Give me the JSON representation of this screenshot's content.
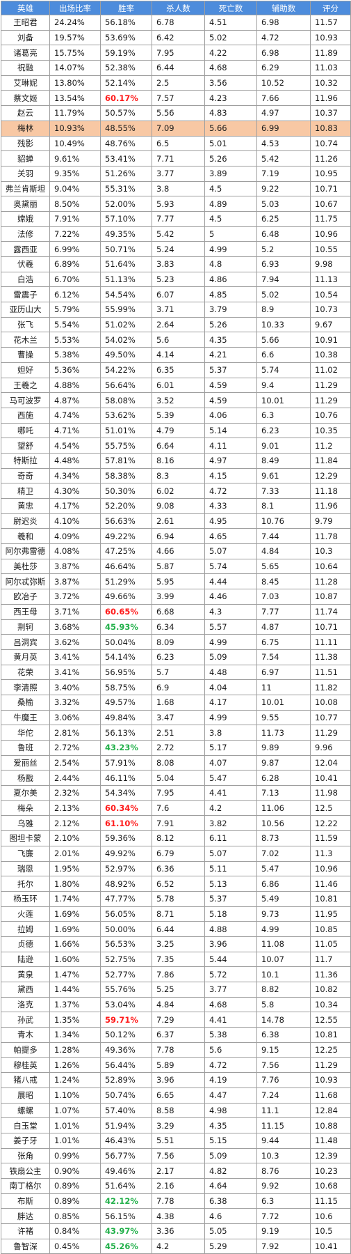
{
  "header": [
    "英雄",
    "出场比率",
    "胜率",
    "杀人数",
    "死亡数",
    "辅助数",
    "评分"
  ],
  "highlight_color": "#f8c8a4",
  "header_color": "#4d8cdc",
  "high_win_color": "#ff1a1a",
  "low_win_color": "#22b04a",
  "rows": [
    [
      "王昭君",
      "24.24%",
      "56.18%",
      "6.78",
      "4.51",
      "6.98",
      "11.57"
    ],
    [
      "刘备",
      "19.57%",
      "53.69%",
      "6.42",
      "5.02",
      "4.72",
      "10.93"
    ],
    [
      "诸葛亮",
      "15.75%",
      "59.19%",
      "7.95",
      "4.22",
      "6.98",
      "11.89"
    ],
    [
      "祝融",
      "14.07%",
      "52.38%",
      "6.44",
      "4.68",
      "6.29",
      "11.03"
    ],
    [
      "艾琳妮",
      "13.80%",
      "52.14%",
      "2.5",
      "3.56",
      "10.52",
      "10.32"
    ],
    [
      "蔡文姬",
      "13.54%",
      "60.17%",
      "7.57",
      "4.23",
      "7.66",
      "11.96",
      "high"
    ],
    [
      "赵云",
      "11.79%",
      "50.57%",
      "5.56",
      "4.83",
      "4.97",
      "10.37"
    ],
    [
      "梅林",
      "10.93%",
      "48.55%",
      "7.09",
      "5.66",
      "6.99",
      "10.83",
      "",
      "hl"
    ],
    [
      "残影",
      "10.49%",
      "48.76%",
      "6.5",
      "5.01",
      "4.53",
      "10.74"
    ],
    [
      "貂蝉",
      "9.61%",
      "53.41%",
      "7.71",
      "5.26",
      "5.42",
      "11.26"
    ],
    [
      "关羽",
      "9.35%",
      "51.26%",
      "3.77",
      "3.89",
      "7.19",
      "10.95"
    ],
    [
      "弗兰肯斯坦",
      "9.04%",
      "55.31%",
      "3.8",
      "4.5",
      "9.22",
      "10.71"
    ],
    [
      "奥黛丽",
      "8.50%",
      "52.00%",
      "5.93",
      "4.89",
      "5.03",
      "10.67"
    ],
    [
      "嫦娥",
      "7.91%",
      "57.10%",
      "7.77",
      "4.5",
      "6.25",
      "11.75"
    ],
    [
      "法修",
      "7.22%",
      "49.35%",
      "5.42",
      "5",
      "6.48",
      "10.96"
    ],
    [
      "露西亚",
      "6.99%",
      "50.71%",
      "5.24",
      "4.99",
      "5.2",
      "10.55"
    ],
    [
      "伏羲",
      "6.89%",
      "51.64%",
      "3.83",
      "4.8",
      "6.93",
      "9.98"
    ],
    [
      "白浩",
      "6.70%",
      "51.13%",
      "5.23",
      "4.86",
      "7.94",
      "11.13"
    ],
    [
      "雷震子",
      "6.12%",
      "54.54%",
      "6.07",
      "4.85",
      "5.02",
      "10.54"
    ],
    [
      "亚历山大",
      "5.79%",
      "55.99%",
      "3.71",
      "3.79",
      "8.9",
      "10.73"
    ],
    [
      "张飞",
      "5.54%",
      "51.02%",
      "2.64",
      "5.26",
      "10.33",
      "9.67"
    ],
    [
      "花木兰",
      "5.53%",
      "54.02%",
      "5.6",
      "4.35",
      "5.66",
      "10.91"
    ],
    [
      "曹操",
      "5.38%",
      "49.50%",
      "4.14",
      "4.21",
      "6.6",
      "10.38"
    ],
    [
      "妲好",
      "5.36%",
      "54.22%",
      "6.35",
      "5.37",
      "5.74",
      "11.02"
    ],
    [
      "王羲之",
      "4.88%",
      "56.64%",
      "6.01",
      "4.59",
      "9.4",
      "11.29"
    ],
    [
      "马可波罗",
      "4.87%",
      "58.08%",
      "3.52",
      "4.59",
      "10.01",
      "11.29"
    ],
    [
      "西施",
      "4.74%",
      "53.62%",
      "5.39",
      "4.06",
      "6.3",
      "10.76"
    ],
    [
      "哪吒",
      "4.71%",
      "51.01%",
      "4.79",
      "5.14",
      "6.23",
      "10.35"
    ],
    [
      "望舒",
      "4.54%",
      "55.75%",
      "6.64",
      "4.11",
      "9.01",
      "11.2"
    ],
    [
      "特斯拉",
      "4.48%",
      "57.81%",
      "8.16",
      "4.97",
      "8.49",
      "11.84"
    ],
    [
      "奇奇",
      "4.34%",
      "58.38%",
      "8.3",
      "4.15",
      "9.61",
      "12.29"
    ],
    [
      "精卫",
      "4.30%",
      "50.30%",
      "6.02",
      "4.72",
      "7.33",
      "11.18"
    ],
    [
      "黄忠",
      "4.17%",
      "52.20%",
      "9.08",
      "4.33",
      "8.1",
      "11.96"
    ],
    [
      "尉迟炎",
      "4.10%",
      "56.63%",
      "2.61",
      "4.95",
      "10.76",
      "9.79"
    ],
    [
      "羲和",
      "4.09%",
      "49.22%",
      "6.94",
      "4.65",
      "7.44",
      "11.78"
    ],
    [
      "阿尔弗雷德",
      "4.08%",
      "47.25%",
      "4.66",
      "5.07",
      "4.84",
      "10.3"
    ],
    [
      "美杜莎",
      "3.87%",
      "46.64%",
      "5.87",
      "5.74",
      "5.65",
      "10.64"
    ],
    [
      "阿尔忒弥斯",
      "3.87%",
      "51.29%",
      "5.95",
      "4.44",
      "8.45",
      "11.28"
    ],
    [
      "欧冶子",
      "3.72%",
      "49.66%",
      "3.99",
      "4.46",
      "7.03",
      "10.87"
    ],
    [
      "西王母",
      "3.71%",
      "60.65%",
      "6.68",
      "4.3",
      "7.77",
      "11.74",
      "high"
    ],
    [
      "荆轲",
      "3.68%",
      "45.93%",
      "6.34",
      "5.57",
      "4.87",
      "10.71",
      "low"
    ],
    [
      "吕洞宾",
      "3.62%",
      "50.04%",
      "8.09",
      "4.99",
      "6.75",
      "11.11"
    ],
    [
      "黄月英",
      "3.41%",
      "54.14%",
      "6.23",
      "5.09",
      "7.54",
      "11.38"
    ],
    [
      "花荣",
      "3.41%",
      "56.95%",
      "5.7",
      "4.48",
      "6.97",
      "11.51"
    ],
    [
      "李清照",
      "3.40%",
      "58.75%",
      "6.9",
      "4.04",
      "11",
      "11.82"
    ],
    [
      "桑榆",
      "3.32%",
      "49.57%",
      "1.68",
      "4.17",
      "10.01",
      "10.08"
    ],
    [
      "牛魔王",
      "3.06%",
      "49.84%",
      "3.47",
      "4.99",
      "9.55",
      "10.77"
    ],
    [
      "华佗",
      "2.81%",
      "56.13%",
      "2.51",
      "3.8",
      "11.73",
      "11.29"
    ],
    [
      "鲁班",
      "2.72%",
      "43.23%",
      "2.72",
      "5.17",
      "9.89",
      "9.96",
      "low"
    ],
    [
      "爱丽丝",
      "2.54%",
      "57.91%",
      "8.08",
      "4.07",
      "9.87",
      "12.04"
    ],
    [
      "杨戬",
      "2.44%",
      "46.11%",
      "5.04",
      "5.47",
      "6.28",
      "10.41"
    ],
    [
      "夏尔美",
      "2.32%",
      "54.34%",
      "7.95",
      "4.41",
      "7.13",
      "11.98"
    ],
    [
      "梅朵",
      "2.13%",
      "60.34%",
      "7.6",
      "4.2",
      "11.06",
      "12.5",
      "high"
    ],
    [
      "乌雅",
      "2.12%",
      "61.10%",
      "7.91",
      "3.82",
      "10.56",
      "12.22",
      "high"
    ],
    [
      "图坦卡蒙",
      "2.10%",
      "59.36%",
      "8.12",
      "6.11",
      "8.73",
      "11.59"
    ],
    [
      "飞廉",
      "2.01%",
      "49.92%",
      "6.79",
      "5.07",
      "7.02",
      "11.3"
    ],
    [
      "瑞恩",
      "1.95%",
      "52.97%",
      "6.36",
      "5.11",
      "5.47",
      "10.96"
    ],
    [
      "托尔",
      "1.80%",
      "48.92%",
      "6.52",
      "5.13",
      "6.86",
      "11.46"
    ],
    [
      "杨玉环",
      "1.74%",
      "47.77%",
      "5.78",
      "5.37",
      "5.49",
      "10.81"
    ],
    [
      "火莲",
      "1.69%",
      "56.05%",
      "8.71",
      "5.18",
      "9.73",
      "11.95"
    ],
    [
      "拉姆",
      "1.69%",
      "50.00%",
      "6.44",
      "4.88",
      "4.99",
      "10.85"
    ],
    [
      "贞德",
      "1.66%",
      "56.53%",
      "3.25",
      "3.96",
      "11.08",
      "11.05"
    ],
    [
      "陆逊",
      "1.60%",
      "52.75%",
      "7.35",
      "5.44",
      "10.07",
      "11.7"
    ],
    [
      "黄泉",
      "1.47%",
      "52.77%",
      "7.86",
      "5.72",
      "10.1",
      "11.36"
    ],
    [
      "黛西",
      "1.44%",
      "55.76%",
      "5.25",
      "3.77",
      "8.82",
      "10.82"
    ],
    [
      "洛克",
      "1.37%",
      "53.04%",
      "4.84",
      "4.68",
      "5.8",
      "10.34"
    ],
    [
      "孙武",
      "1.35%",
      "59.71%",
      "7.29",
      "4.41",
      "14.78",
      "12.55",
      "high"
    ],
    [
      "青木",
      "1.34%",
      "50.12%",
      "6.37",
      "5.38",
      "6.38",
      "10.81"
    ],
    [
      "帕提多",
      "1.28%",
      "49.36%",
      "7.78",
      "5.6",
      "9.15",
      "12.25"
    ],
    [
      "穆桂英",
      "1.26%",
      "56.44%",
      "5.89",
      "4.72",
      "7.56",
      "11.29"
    ],
    [
      "猪八戒",
      "1.24%",
      "52.89%",
      "3.96",
      "4.19",
      "7.76",
      "10.93"
    ],
    [
      "展昭",
      "1.10%",
      "50.74%",
      "6.65",
      "4.47",
      "7.24",
      "11.68"
    ],
    [
      "螺螺",
      "1.07%",
      "57.40%",
      "8.58",
      "4.98",
      "11.1",
      "12.84"
    ],
    [
      "白玉堂",
      "1.01%",
      "51.94%",
      "3.29",
      "4.35",
      "11.15",
      "10.88"
    ],
    [
      "姜子牙",
      "1.01%",
      "46.43%",
      "5.51",
      "5.15",
      "9.44",
      "11.48"
    ],
    [
      "张角",
      "0.99%",
      "56.77%",
      "7.56",
      "5.09",
      "10.3",
      "12.39"
    ],
    [
      "铁扇公主",
      "0.90%",
      "49.46%",
      "2.17",
      "4.82",
      "8.76",
      "10.23"
    ],
    [
      "南丁格尔",
      "0.89%",
      "51.64%",
      "2.16",
      "4.64",
      "9.92",
      "10.68"
    ],
    [
      "布斯",
      "0.89%",
      "42.12%",
      "7.78",
      "6.38",
      "6.3",
      "11.15",
      "low"
    ],
    [
      "胖达",
      "0.85%",
      "56.15%",
      "4.38",
      "4.6",
      "7.72",
      "10.6"
    ],
    [
      "许褚",
      "0.84%",
      "43.97%",
      "3.36",
      "5.05",
      "9.19",
      "10.5",
      "low"
    ],
    [
      "鲁智深",
      "0.45%",
      "45.26%",
      "4.2",
      "5.29",
      "7.92",
      "10.41",
      "low"
    ]
  ]
}
